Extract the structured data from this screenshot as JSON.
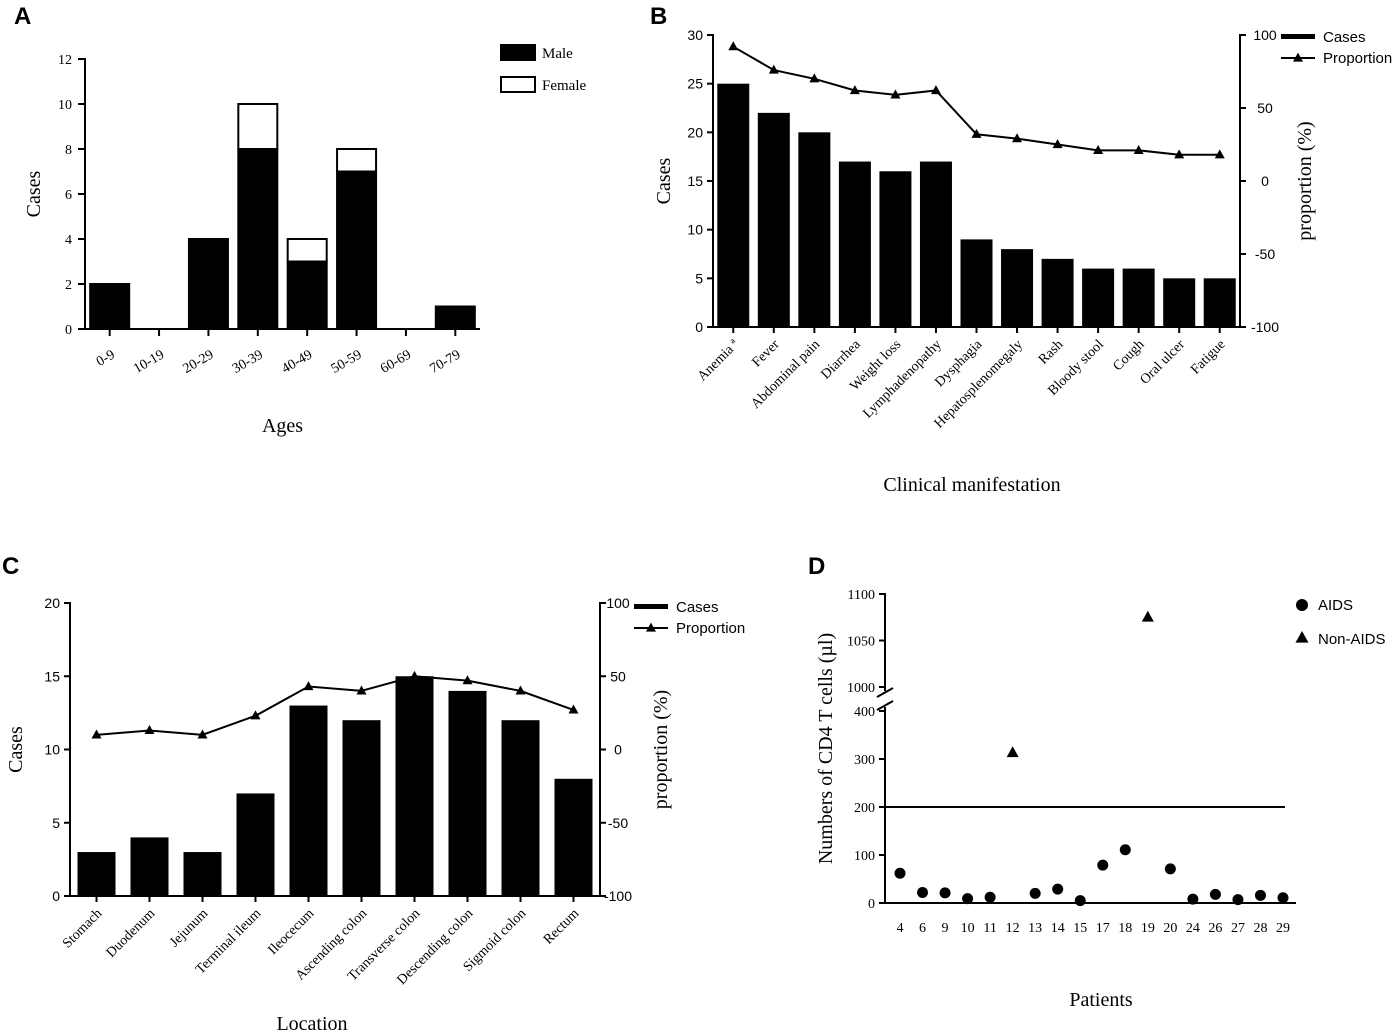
{
  "chart_data": [
    {
      "panel": "A",
      "type": "bar",
      "stacked": true,
      "categories": [
        "0-9",
        "10-19",
        "20-29",
        "30-39",
        "40-49",
        "50-59",
        "60-69",
        "70-79"
      ],
      "series": [
        {
          "name": "Male",
          "values": [
            2,
            0,
            4,
            8,
            3,
            7,
            0,
            1
          ],
          "color": "#000000"
        },
        {
          "name": "Female",
          "values": [
            0,
            0,
            0,
            2,
            1,
            1,
            0,
            0
          ],
          "color": "#ffffff"
        }
      ],
      "xlabel": "Ages",
      "ylabel": "Cases",
      "ylim": [
        0,
        12
      ],
      "yticks": [
        0,
        2,
        4,
        6,
        8,
        10,
        12
      ],
      "legend": "top-right"
    },
    {
      "panel": "B",
      "type": "bar",
      "categories": [
        "Anemia ª",
        "Fever",
        "Abdominal pain",
        "Diarrhea",
        "Weight loss",
        "Lymphadenopathy",
        "Dysphagia",
        "Hepatosplenomegaly",
        "Rash",
        "Bloody stool",
        "Cough",
        "Oral ulcer",
        "Fatigue"
      ],
      "series": [
        {
          "name": "Cases",
          "type": "bar",
          "axis": "left",
          "values": [
            25,
            22,
            20,
            17,
            16,
            17,
            9,
            8,
            7,
            6,
            6,
            5,
            5
          ]
        },
        {
          "name": "Proportion",
          "type": "line",
          "marker": "triangle",
          "axis": "right",
          "values": [
            92,
            76,
            70,
            62,
            59,
            62,
            32,
            29,
            25,
            21,
            21,
            18,
            18
          ]
        }
      ],
      "xlabel": "Clinical manifestation",
      "ylabel": "Cases",
      "ylabel_right": "proportion (%)",
      "ylim": [
        0,
        30
      ],
      "yticks": [
        0,
        5,
        10,
        15,
        20,
        25,
        30
      ],
      "ylim_right": [
        -100,
        100
      ],
      "yticks_right": [
        -100,
        -50,
        0,
        50,
        100
      ],
      "legend": "top-right"
    },
    {
      "panel": "C",
      "type": "bar",
      "categories": [
        "Stomach",
        "Duodenum",
        "Jejunum",
        "Terminal ileum",
        "Ileocecum",
        "Ascending colon",
        "Transverse colon",
        "Descending colon",
        "Sigmoid colon",
        "Rectum"
      ],
      "series": [
        {
          "name": "Cases",
          "type": "bar",
          "axis": "left",
          "values": [
            3,
            4,
            3,
            7,
            13,
            12,
            15,
            14,
            12,
            8
          ]
        },
        {
          "name": "Proportion",
          "type": "line",
          "marker": "triangle",
          "axis": "right",
          "values": [
            10,
            13,
            10,
            23,
            43,
            40,
            50,
            47,
            40,
            27
          ]
        }
      ],
      "xlabel": "Location",
      "ylabel": "Cases",
      "ylabel_right": "proportion (%)",
      "ylim": [
        0,
        20
      ],
      "yticks": [
        0,
        5,
        10,
        15,
        20
      ],
      "ylim_right": [
        -100,
        100
      ],
      "yticks_right": [
        -100,
        -50,
        0,
        50,
        100
      ],
      "legend": "top-right"
    },
    {
      "panel": "D",
      "type": "scatter",
      "categories": [
        "4",
        "6",
        "9",
        "10",
        "11",
        "12",
        "13",
        "14",
        "15",
        "17",
        "18",
        "19",
        "20",
        "24",
        "26",
        "27",
        "28",
        "29"
      ],
      "series": [
        {
          "name": "AIDS",
          "marker": "circle",
          "points": [
            {
              "x": "4",
              "y": 62
            },
            {
              "x": "6",
              "y": 22
            },
            {
              "x": "9",
              "y": 21
            },
            {
              "x": "10",
              "y": 9
            },
            {
              "x": "11",
              "y": 12
            },
            {
              "x": "13",
              "y": 20
            },
            {
              "x": "14",
              "y": 29
            },
            {
              "x": "15",
              "y": 5
            },
            {
              "x": "17",
              "y": 79
            },
            {
              "x": "18",
              "y": 111
            },
            {
              "x": "20",
              "y": 71
            },
            {
              "x": "24",
              "y": 8
            },
            {
              "x": "26",
              "y": 18
            },
            {
              "x": "27",
              "y": 7
            },
            {
              "x": "28",
              "y": 16
            },
            {
              "x": "29",
              "y": 11
            }
          ]
        },
        {
          "name": "Non-AIDS",
          "marker": "triangle",
          "points": [
            {
              "x": "12",
              "y": 313
            },
            {
              "x": "19",
              "y": 1075
            }
          ]
        }
      ],
      "reference_line": {
        "y": 200
      },
      "axis_break": {
        "from": 400,
        "to": 1000
      },
      "ylim_lower": [
        0,
        400
      ],
      "yticks_lower": [
        0,
        100,
        200,
        300,
        400
      ],
      "ylim_upper": [
        1000,
        1100
      ],
      "yticks_upper": [
        1000,
        1050,
        1100
      ],
      "xlabel": "Patients",
      "ylabel": "Numbers of CD4 T cells (µl)",
      "legend": "top-right"
    }
  ]
}
